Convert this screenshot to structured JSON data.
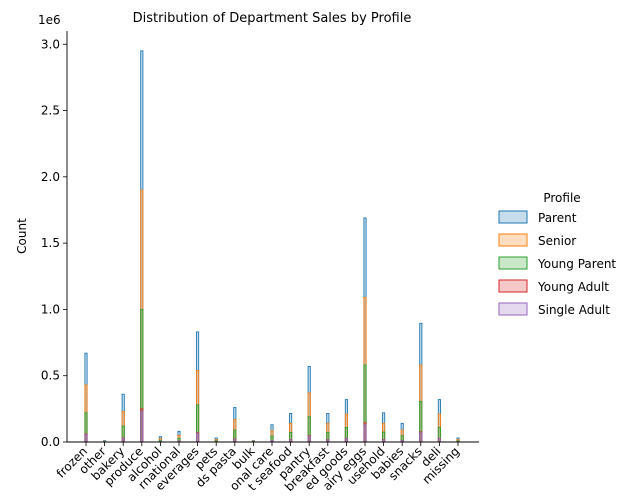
{
  "chart_data": {
    "type": "bar",
    "title": "Distribution of Department Sales by Profile",
    "xlabel": "",
    "ylabel": "Count",
    "y_offset_text": "1e6",
    "ylim": [
      0,
      3100000
    ],
    "yticks": [
      0,
      500000,
      1000000,
      1500000,
      2000000,
      2500000,
      3000000
    ],
    "ytick_labels": [
      "0.0",
      "0.5",
      "1.0",
      "1.5",
      "2.0",
      "2.5",
      "3.0"
    ],
    "grid": false,
    "legend_position": "right",
    "legend_title": "Profile",
    "categories": [
      "frozen",
      "other",
      "bakery",
      "produce",
      "alcohol",
      "international",
      "beverages",
      "pets",
      "dry goods pasta",
      "bulk",
      "personal care",
      "meat seafood",
      "pantry",
      "breakfast",
      "canned goods",
      "dairy eggs",
      "household",
      "babies",
      "snacks",
      "deli",
      "missing"
    ],
    "tick_labels": [
      "frozen",
      "other",
      "bakery",
      "produce",
      "alcohol",
      "rnational",
      "everages",
      "pets",
      "ds pasta",
      "bulk",
      "onal care",
      "t seafood",
      "pantry",
      "breakfast",
      "ed goods",
      "airy eggs",
      "usehold",
      "babies",
      "snacks",
      "deli",
      "missing"
    ],
    "series": [
      {
        "name": "Parent",
        "color": "#1f77b4",
        "values": [
          670000,
          10000,
          360000,
          2950000,
          40000,
          80000,
          830000,
          30000,
          260000,
          10000,
          130000,
          215000,
          570000,
          215000,
          320000,
          1690000,
          220000,
          140000,
          895000,
          320000,
          30000
        ]
      },
      {
        "name": "Senior",
        "color": "#ff7f0e",
        "values": [
          430000,
          5000,
          230000,
          1900000,
          25000,
          50000,
          540000,
          18000,
          170000,
          6000,
          85000,
          140000,
          370000,
          140000,
          210000,
          1090000,
          140000,
          90000,
          580000,
          210000,
          18000
        ]
      },
      {
        "name": "Young Parent",
        "color": "#2ca02c",
        "values": [
          220000,
          3000,
          120000,
          1000000,
          13000,
          27000,
          280000,
          9000,
          90000,
          3000,
          45000,
          72000,
          190000,
          72000,
          110000,
          580000,
          75000,
          48000,
          305000,
          110000,
          9000
        ]
      },
      {
        "name": "Young Adult",
        "color": "#d62728",
        "values": [
          60000,
          1000,
          30000,
          250000,
          4000,
          7000,
          70000,
          2000,
          22000,
          1000,
          11000,
          18000,
          48000,
          18000,
          27000,
          145000,
          19000,
          12000,
          76000,
          27000,
          2000
        ]
      },
      {
        "name": "Single Adult",
        "color": "#9467bd",
        "values": [
          55000,
          1000,
          28000,
          230000,
          3000,
          6000,
          65000,
          2000,
          20000,
          1000,
          10000,
          17000,
          44000,
          17000,
          25000,
          130000,
          17000,
          11000,
          70000,
          25000,
          2000
        ]
      }
    ]
  }
}
